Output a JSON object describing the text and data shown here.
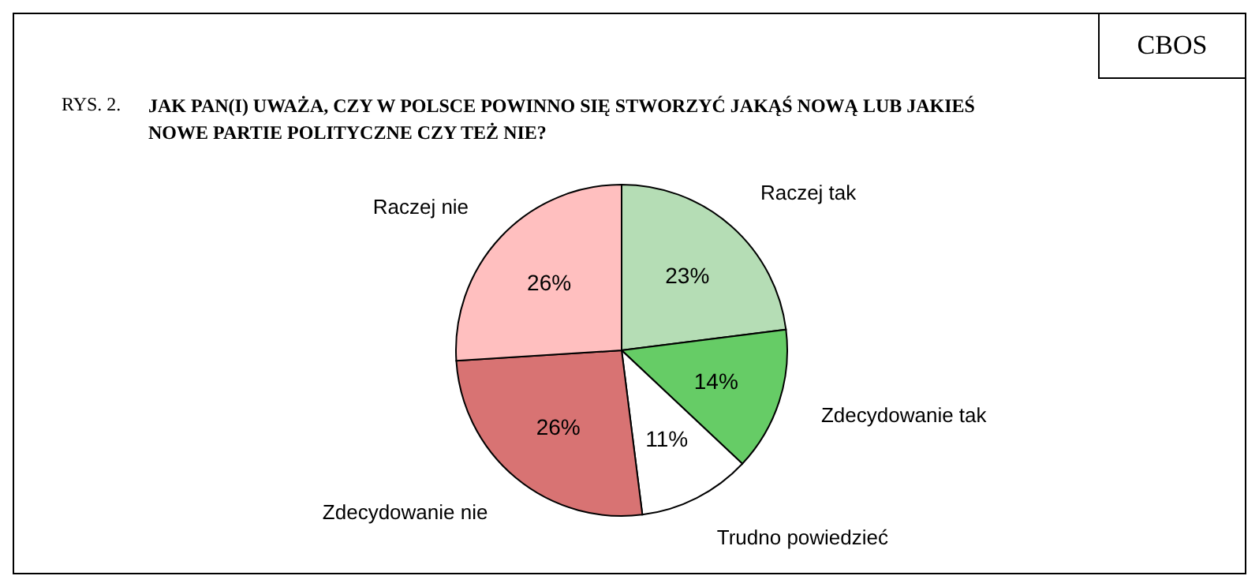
{
  "chart_data": {
    "type": "pie",
    "title": "JAK PAN(I) UWAŻA, CZY W POLSCE POWINNO SIĘ STWORZYĆ JAKĄŚ NOWĄ LUB JAKIEŚ NOWE PARTIE POLITYCZNE CZY TEŻ NIE?",
    "annotations": [
      "RYS. 2.",
      "CBOS"
    ],
    "categories": [
      "Raczej tak",
      "Zdecydowanie tak",
      "Trudno powiedzieć",
      "Zdecydowanie nie",
      "Raczej nie"
    ],
    "values": [
      23,
      14,
      11,
      26,
      26
    ],
    "value_labels": [
      "23%",
      "14%",
      "11%",
      "26%",
      "26%"
    ],
    "colors": [
      "#b5ddb5",
      "#66cc66",
      "#ffffff",
      "#d87373",
      "#ffbfbf"
    ],
    "legend": false
  }
}
